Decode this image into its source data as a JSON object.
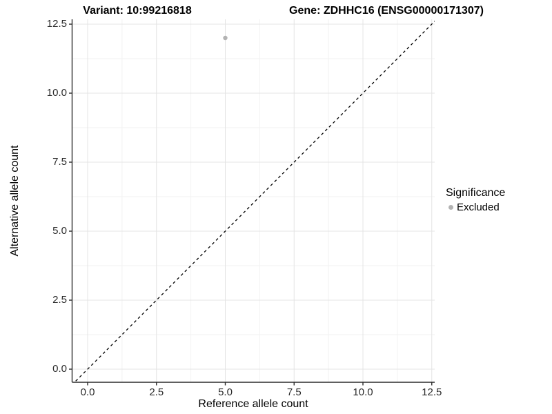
{
  "header": {
    "variant_title": "Variant: 10:99216818",
    "gene_title": "Gene: ZDHHC16 (ENSG00000171307)"
  },
  "legend": {
    "title": "Significance",
    "items": [
      {
        "label": "Excluded",
        "marker": "dot",
        "color": "#b3b3b3"
      }
    ]
  },
  "chart_data": {
    "type": "scatter",
    "xlabel": "Reference allele count",
    "ylabel": "Alternative allele count",
    "x_ticks": [
      0.0,
      2.5,
      5.0,
      7.5,
      10.0,
      12.5
    ],
    "y_ticks": [
      0.0,
      2.5,
      5.0,
      7.5,
      10.0,
      12.5
    ],
    "x_tick_labels": [
      "0.0",
      "2.5",
      "5.0",
      "7.5",
      "10.0",
      "12.5"
    ],
    "y_tick_labels": [
      "0.0",
      "2.5",
      "5.0",
      "7.5",
      "10.0",
      "12.5"
    ],
    "xlim": [
      -0.56,
      12.61
    ],
    "ylim": [
      -0.48,
      12.68
    ],
    "grid": "major+minor",
    "legend_position": "right",
    "series": [
      {
        "name": "Excluded",
        "color": "#b3b3b3",
        "points": [
          {
            "x": 5,
            "y": 12
          }
        ]
      }
    ],
    "reference_line": {
      "kind": "identity",
      "slope": 1,
      "intercept": 0,
      "style": "dashed",
      "color": "#000000"
    }
  },
  "style_colors": {
    "grid_major": "#e4e4e4",
    "grid_minor": "#f2f2f2",
    "axis_line": "#2b2b2b",
    "tick_text": "#2b2b2b",
    "point": "#b3b3b3"
  }
}
